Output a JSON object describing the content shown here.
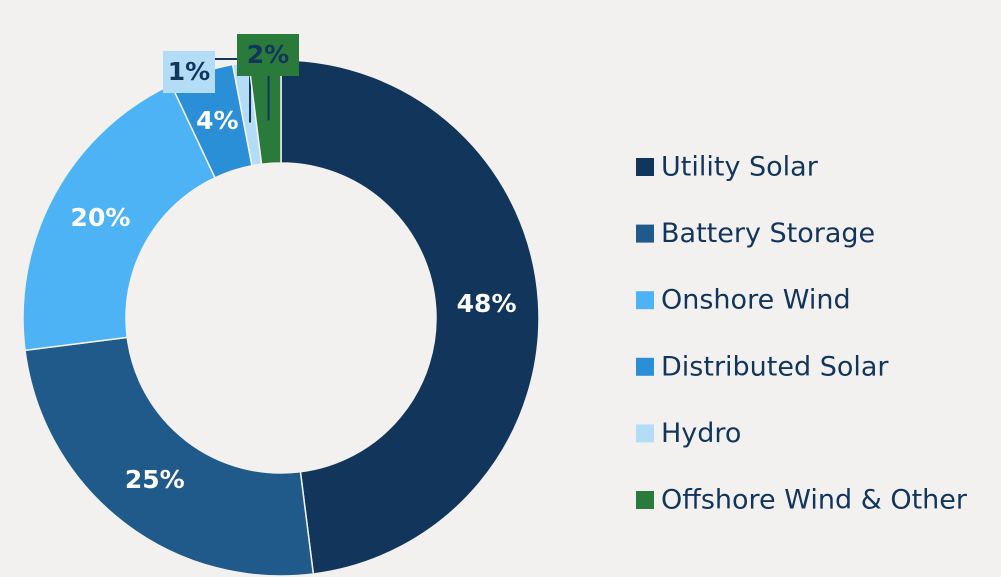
{
  "chart_data": {
    "type": "pie",
    "donut": true,
    "categories": [
      "Utility Solar",
      "Battery Storage",
      "Onshore Wind",
      "Distributed Solar",
      "Hydro",
      "Offshore Wind & Other"
    ],
    "values": [
      48,
      25,
      20,
      4,
      1,
      2
    ],
    "value_labels": [
      "48%",
      "25%",
      "20%",
      "4%",
      "1%",
      "2%"
    ],
    "colors": [
      "#12355b",
      "#1f5a8a",
      "#4db3f5",
      "#2a8fd6",
      "#b3dcf7",
      "#2a7a3b"
    ],
    "legend": "right"
  }
}
